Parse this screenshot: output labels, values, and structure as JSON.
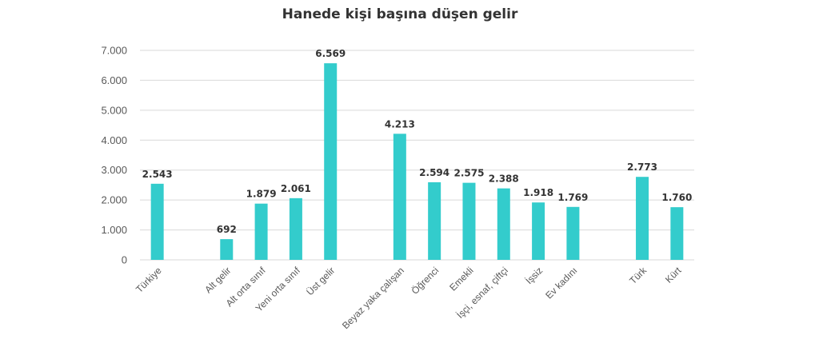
{
  "chart_data": {
    "type": "bar",
    "title": "Hanede kişi başına düşen gelir",
    "xlabel": "",
    "ylabel": "",
    "ylim": [
      0,
      7000
    ],
    "y_ticks": [
      "0",
      "1.000",
      "2.000",
      "3.000",
      "4.000",
      "5.000",
      "6.000",
      "7.000"
    ],
    "grid": true,
    "categories": [
      "Türkiye",
      "",
      "Alt gelir",
      "Alt orta sınıf",
      "Yeni orta sınıf",
      "Üst gelir",
      "",
      "Beyaz yaka çalışan",
      "Öğrenci",
      "Emekli",
      "İşçi, esnaf, çiftçi",
      "İşsiz",
      "Ev kadını",
      "",
      "Türk",
      "Kürt"
    ],
    "values": [
      2543,
      null,
      692,
      1879,
      2061,
      6569,
      null,
      4213,
      2594,
      2575,
      2388,
      1918,
      1769,
      null,
      2773,
      1760
    ],
    "value_labels": [
      "2.543",
      "",
      "692",
      "1.879",
      "2.061",
      "6.569",
      "",
      "4.213",
      "2.594",
      "2.575",
      "2.388",
      "1.918",
      "1.769",
      "",
      "2.773",
      "1.760"
    ],
    "bar_color": "#33CCCC",
    "grid_color": "#D9D9D9"
  }
}
